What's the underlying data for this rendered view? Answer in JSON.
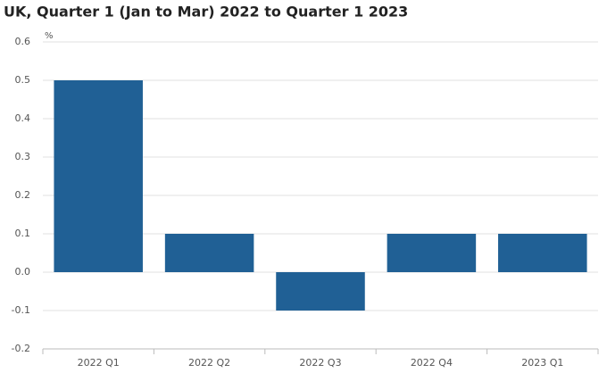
{
  "chart_data": {
    "type": "bar",
    "title": "UK, Quarter 1 (Jan to Mar) 2022 to Quarter 1 2023",
    "y_unit": "%",
    "categories": [
      "2022 Q1",
      "2022 Q2",
      "2022 Q3",
      "2022 Q4",
      "2023 Q1"
    ],
    "values": [
      0.5,
      0.1,
      -0.1,
      0.1,
      0.1
    ],
    "color": "#206095",
    "ylim": [
      -0.2,
      0.6
    ],
    "yticks": [
      -0.2,
      -0.1,
      {
        "value": 0,
        "label": "0.0"
      },
      0.1,
      0.2,
      0.3,
      0.4,
      0.5,
      0.6
    ],
    "grid": true
  }
}
